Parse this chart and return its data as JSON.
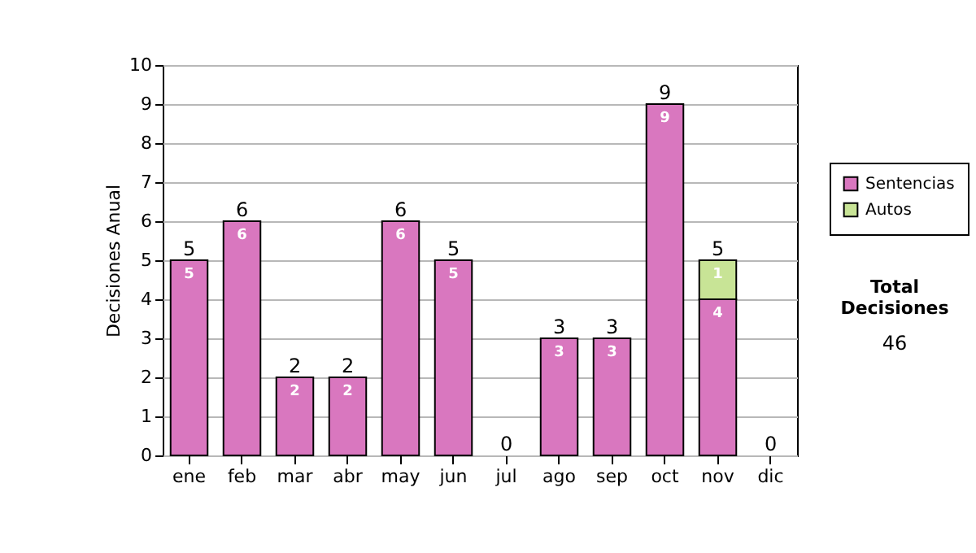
{
  "chart_data": {
    "type": "bar",
    "stacked": true,
    "ylabel": "Decisiones Anual",
    "categories": [
      "ene",
      "feb",
      "mar",
      "abr",
      "may",
      "jun",
      "jul",
      "ago",
      "sep",
      "oct",
      "nov",
      "dic"
    ],
    "series": [
      {
        "name": "Sentencias",
        "color": "#d977bf",
        "values": [
          5,
          6,
          2,
          2,
          6,
          5,
          0,
          3,
          3,
          9,
          4,
          0
        ],
        "value_labels": [
          "5",
          "6",
          "2",
          "2",
          "6",
          "5",
          null,
          "3",
          "3",
          "9",
          "4",
          null
        ]
      },
      {
        "name": "Autos",
        "color": "#c8e496",
        "values": [
          0,
          0,
          0,
          0,
          0,
          0,
          0,
          0,
          0,
          0,
          1,
          0
        ],
        "value_labels": [
          null,
          null,
          null,
          null,
          null,
          null,
          null,
          null,
          null,
          null,
          "1",
          null
        ]
      }
    ],
    "totals": [
      "5",
      "6",
      "2",
      "2",
      "6",
      "5",
      "0",
      "3",
      "3",
      "9",
      "5",
      "0"
    ],
    "ylim": [
      0,
      10
    ],
    "yticks": [
      0,
      1,
      2,
      3,
      4,
      5,
      6,
      7,
      8,
      9,
      10
    ],
    "grid": "y",
    "legend": "right",
    "annotations": [
      "Total Decisiones",
      "46"
    ]
  }
}
